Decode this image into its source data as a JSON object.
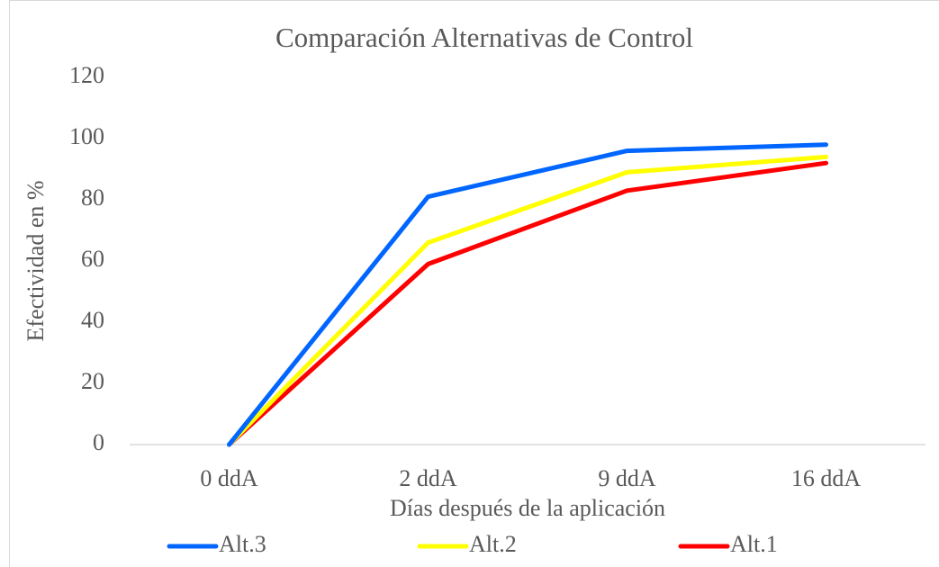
{
  "chart_data": {
    "type": "line",
    "title": "Comparación Alternativas de Control",
    "x_label": "Días después de la aplicación",
    "y_label": "Efectividad en %",
    "categories": [
      "0 ddA",
      "2 ddA",
      "9 ddA",
      "16 ddA"
    ],
    "series": [
      {
        "name": "Alt.3",
        "color": "#0066ff",
        "values": [
          0,
          81,
          96,
          98
        ]
      },
      {
        "name": "Alt.2",
        "color": "#ffff00",
        "values": [
          0,
          66,
          89,
          94
        ]
      },
      {
        "name": "Alt.1",
        "color": "#ff0000",
        "values": [
          0,
          59,
          83,
          92
        ]
      }
    ],
    "ylim": [
      0,
      120
    ],
    "yticks": [
      0,
      20,
      40,
      60,
      80,
      100,
      120
    ],
    "grid": false,
    "legend": "bottom"
  }
}
